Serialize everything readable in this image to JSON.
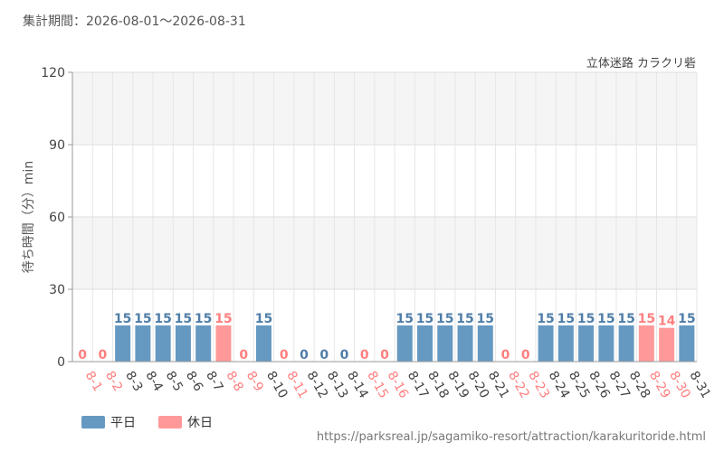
{
  "period_label": "集計期間：2026-08-01～2026-08-31",
  "source_url": "https://parksreal.jp/sagamiko-resort/attraction/karakuritoride.html",
  "chart_data": {
    "type": "bar",
    "title": "",
    "subtitle": "立体迷路 カラクリ砦",
    "xlabel": "",
    "ylabel": "待ち時間（分）min",
    "ylim": [
      0,
      120
    ],
    "yticks": [
      0,
      30,
      60,
      90,
      120
    ],
    "grid": true,
    "legend_position": "bottom-left",
    "categories": [
      "8-1",
      "8-2",
      "8-3",
      "8-4",
      "8-5",
      "8-6",
      "8-7",
      "8-8",
      "8-9",
      "8-10",
      "8-11",
      "8-12",
      "8-13",
      "8-14",
      "8-15",
      "8-16",
      "8-17",
      "8-18",
      "8-19",
      "8-20",
      "8-21",
      "8-22",
      "8-23",
      "8-24",
      "8-25",
      "8-26",
      "8-27",
      "8-28",
      "8-29",
      "8-30",
      "8-31"
    ],
    "values": [
      0,
      0,
      15,
      15,
      15,
      15,
      15,
      15,
      0,
      15,
      0,
      0,
      0,
      0,
      0,
      0,
      15,
      15,
      15,
      15,
      15,
      0,
      0,
      15,
      15,
      15,
      15,
      15,
      15,
      14,
      15
    ],
    "day_type": [
      "holiday",
      "holiday",
      "weekday",
      "weekday",
      "weekday",
      "weekday",
      "weekday",
      "holiday",
      "holiday",
      "weekday",
      "holiday",
      "weekday",
      "weekday",
      "weekday",
      "holiday",
      "holiday",
      "weekday",
      "weekday",
      "weekday",
      "weekday",
      "weekday",
      "holiday",
      "holiday",
      "weekday",
      "weekday",
      "weekday",
      "weekday",
      "weekday",
      "holiday",
      "holiday",
      "weekday"
    ],
    "series": [
      {
        "key": "weekday",
        "name": "平日",
        "color": "#6699c2",
        "label_color": "#4f7ea8"
      },
      {
        "key": "holiday",
        "name": "休日",
        "color": "#ff9999",
        "label_color": "#ff7f7f"
      }
    ]
  }
}
